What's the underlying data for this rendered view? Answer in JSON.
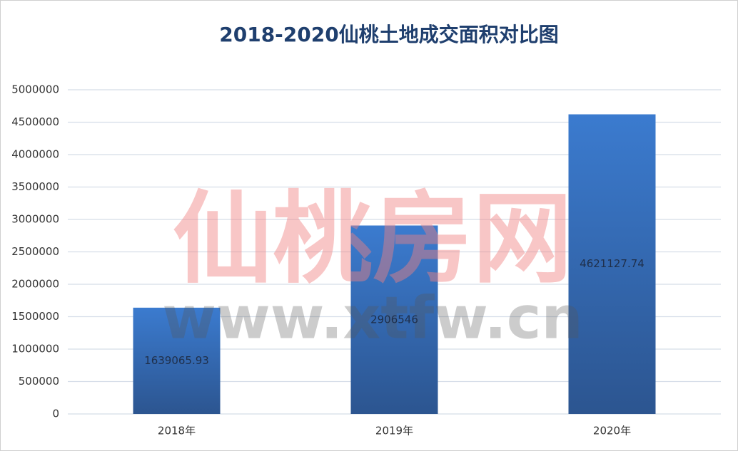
{
  "chart_data": {
    "type": "bar",
    "title": "2018-2020仙桃土地成交面积对比图",
    "categories": [
      "2018年",
      "2019年",
      "2020年"
    ],
    "values": [
      1639065.93,
      2906546,
      4621127.74
    ],
    "color": "#3b7bcf",
    "ylim": [
      0,
      5000000
    ],
    "yticks": [
      0,
      500000,
      1000000,
      1500000,
      2000000,
      2500000,
      3000000,
      3500000,
      4000000,
      4500000,
      5000000
    ],
    "grid": true,
    "watermark": [
      "仙桃房网",
      "www.xtfw.cn"
    ]
  }
}
